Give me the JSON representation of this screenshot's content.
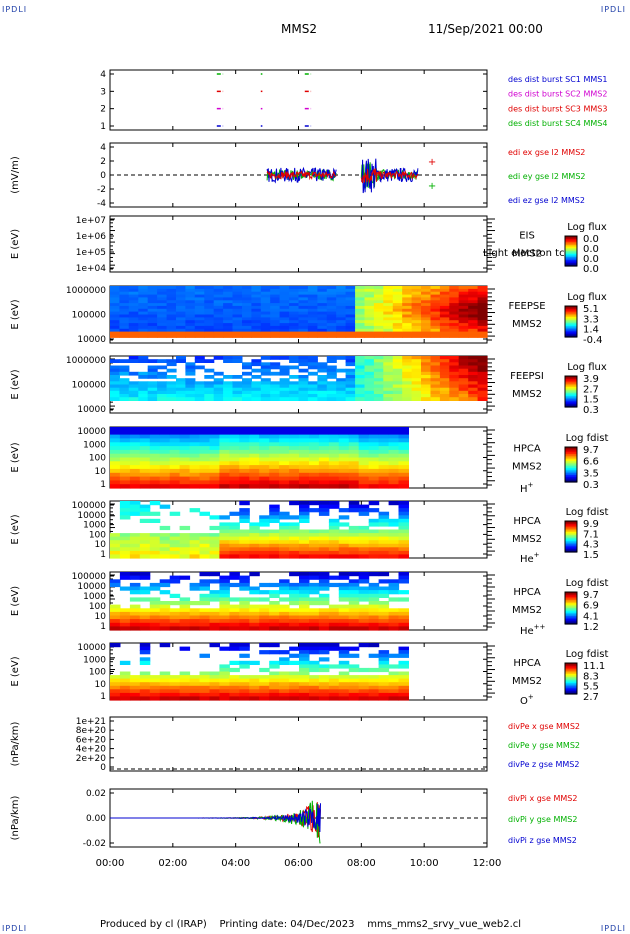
{
  "header": {
    "corner_tl": "IPDLI",
    "corner_tr": "IPDLI",
    "corner_bl": "IPDLI",
    "corner_br": "IPDLI",
    "title": "MMS2",
    "datetime": "11/Sep/2021 00:00"
  },
  "footer": {
    "produced": "Produced by cl (IRAP)",
    "printing": "Printing date: 04/Dec/2023",
    "file": "mms_mms2_srvy_vue_web2.cl"
  },
  "colors": {
    "red": "#e00000",
    "green": "#00b000",
    "blue": "#0000d0",
    "magenta": "#d000d0"
  },
  "xaxis": {
    "ticks": [
      "00:00",
      "02:00",
      "04:00",
      "06:00",
      "08:00",
      "10:00",
      "12:00"
    ]
  },
  "chart_data": [
    {
      "type": "line",
      "id": "burst",
      "yticks": [
        "4",
        "3",
        "2",
        "1"
      ],
      "legend": [
        {
          "text": "des dist burst SC1 MMS1",
          "color": "#0000d0"
        },
        {
          "text": "des dist burst SC2 MMS2",
          "color": "#d000d0"
        },
        {
          "text": "des dist burst SC3 MMS3",
          "color": "#e00000"
        },
        {
          "text": "des dist burst SC4 MMS4",
          "color": "#00b000"
        }
      ]
    },
    {
      "type": "line",
      "id": "edi",
      "ylabel": "(mV/m)",
      "yticks": [
        "4",
        "2",
        "0",
        "-2",
        "-4"
      ],
      "legend": [
        {
          "text": "edi ex gse l2 MMS2",
          "color": "#e00000"
        },
        {
          "text": "edi ey gse l2 MMS2",
          "color": "#00b000"
        },
        {
          "text": "edi ez gse l2 MMS2",
          "color": "#0000d0"
        }
      ]
    },
    {
      "type": "heatmap",
      "id": "eis",
      "ylabel": "E (eV)",
      "yticks": [
        "1e+07",
        "1e+06",
        "1e+05",
        "1e+04"
      ],
      "label1": "EIS",
      "label2": "MMS2",
      "overlay": "Light electron tc",
      "cb_title": "Log flux",
      "cb_ticks": [
        "0.0",
        "0.0",
        "0.0",
        "0.0"
      ]
    },
    {
      "type": "heatmap",
      "id": "feepse",
      "ylabel": "E (eV)",
      "yticks": [
        "1000000",
        "100000",
        "10000"
      ],
      "label1": "FEEPSE",
      "label2": "MMS2",
      "cb_title": "Log flux",
      "cb_ticks": [
        "5.1",
        "3.3",
        "1.4",
        "-0.4"
      ]
    },
    {
      "type": "heatmap",
      "id": "feepsi",
      "ylabel": "E (eV)",
      "yticks": [
        "1000000",
        "100000",
        "10000"
      ],
      "label1": "FEEPSI",
      "label2": "MMS2",
      "cb_title": "Log flux",
      "cb_ticks": [
        "3.9",
        "2.7",
        "1.5",
        "0.3"
      ]
    },
    {
      "type": "heatmap",
      "id": "hpca_h",
      "ylabel": "E (eV)",
      "yticks": [
        "10000",
        "1000",
        "100",
        "10",
        "1"
      ],
      "label1": "HPCA",
      "label2": "MMS2",
      "species": "H",
      "charge": "+",
      "cb_title": "Log fdist",
      "cb_ticks": [
        "9.7",
        "6.6",
        "3.5",
        "0.3"
      ]
    },
    {
      "type": "heatmap",
      "id": "hpca_he",
      "ylabel": "E (eV)",
      "yticks": [
        "100000",
        "10000",
        "1000",
        "100",
        "10",
        "1"
      ],
      "label1": "HPCA",
      "label2": "MMS2",
      "species": "He",
      "charge": "+",
      "cb_title": "Log fdist",
      "cb_ticks": [
        "9.9",
        "7.1",
        "4.3",
        "1.5"
      ]
    },
    {
      "type": "heatmap",
      "id": "hpca_hepp",
      "ylabel": "E (eV)",
      "yticks": [
        "100000",
        "10000",
        "1000",
        "100",
        "10",
        "1"
      ],
      "label1": "HPCA",
      "label2": "MMS2",
      "species": "He",
      "charge": "++",
      "cb_title": "Log fdist",
      "cb_ticks": [
        "9.7",
        "6.9",
        "4.1",
        "1.2"
      ]
    },
    {
      "type": "heatmap",
      "id": "hpca_o",
      "ylabel": "E (eV)",
      "yticks": [
        "10000",
        "1000",
        "100",
        "10",
        "1"
      ],
      "label1": "HPCA",
      "label2": "MMS2",
      "species": "O",
      "charge": "+",
      "cb_title": "Log fdist",
      "cb_ticks": [
        "11.1",
        "8.3",
        "5.5",
        "2.7"
      ]
    },
    {
      "type": "line",
      "id": "divpe",
      "ylabel": "(nPa/km)",
      "yticks": [
        "1e+21",
        "8e+20",
        "6e+20",
        "4e+20",
        "2e+20",
        "0"
      ],
      "legend": [
        {
          "text": "divPe x gse MMS2",
          "color": "#e00000"
        },
        {
          "text": "divPe y gse MMS2",
          "color": "#00b000"
        },
        {
          "text": "divPe z gse MMS2",
          "color": "#0000d0"
        }
      ]
    },
    {
      "type": "line",
      "id": "divpi",
      "ylabel": "(nPa/km)",
      "yticks": [
        "0.02",
        "0.00",
        "-0.02"
      ],
      "legend": [
        {
          "text": "divPi x gse MMS2",
          "color": "#e00000"
        },
        {
          "text": "divPi y gse MMS2",
          "color": "#00b000"
        },
        {
          "text": "divPi z gse MMS2",
          "color": "#0000d0"
        }
      ]
    }
  ]
}
